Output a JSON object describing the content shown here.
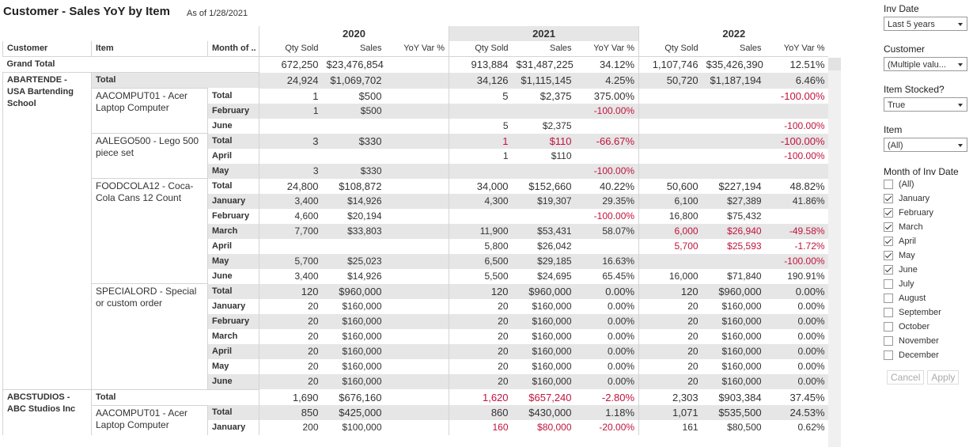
{
  "header": {
    "title": "Customer - Sales YoY by Item",
    "as_of": "As of 1/28/2021"
  },
  "table": {
    "dimensions": [
      "Customer",
      "Item",
      "Month of .."
    ],
    "years": [
      "2020",
      "2021",
      "2022"
    ],
    "measures": [
      "Qty Sold",
      "Sales",
      "YoY Var %"
    ],
    "total_label": "Total",
    "grand_total": {
      "label": "Grand Total",
      "cells": [
        "672,250",
        "$23,476,854",
        null,
        "913,884",
        "$31,487,225",
        "34.12%",
        "1,107,746",
        "$35,426,390",
        "12.51%"
      ]
    },
    "customers": [
      {
        "name": "ABARTENDE - USA Bartending School",
        "total": [
          "24,924",
          "$1,069,702",
          null,
          "34,126",
          "$1,115,145",
          "4.25%",
          "50,720",
          "$1,187,194",
          "6.46%"
        ],
        "items": [
          {
            "name": "AACOMPUT01 - Acer Laptop Computer",
            "total": [
              "1",
              "$500",
              null,
              "5",
              "$2,375",
              "375.00%",
              null,
              null,
              "-100.00%"
            ],
            "months": [
              {
                "month": "February",
                "cells": [
                  "1",
                  "$500",
                  null,
                  null,
                  null,
                  "-100.00%",
                  null,
                  null,
                  null
                ]
              },
              {
                "month": "June",
                "cells": [
                  null,
                  null,
                  null,
                  "5",
                  "$2,375",
                  null,
                  null,
                  null,
                  "-100.00%"
                ]
              }
            ]
          },
          {
            "name": "AALEGO500 - Lego 500 piece set",
            "total": [
              "3",
              "$330",
              null,
              "1",
              "$110",
              "-66.67%",
              null,
              null,
              "-100.00%"
            ],
            "months": [
              {
                "month": "April",
                "cells": [
                  null,
                  null,
                  null,
                  "1",
                  "$110",
                  null,
                  null,
                  null,
                  "-100.00%"
                ]
              },
              {
                "month": "May",
                "cells": [
                  "3",
                  "$330",
                  null,
                  null,
                  null,
                  "-100.00%",
                  null,
                  null,
                  null
                ]
              }
            ]
          },
          {
            "name": "FOODCOLA12 - Coca-Cola Cans 12 Count",
            "total": [
              "24,800",
              "$108,872",
              null,
              "34,000",
              "$152,660",
              "40.22%",
              "50,600",
              "$227,194",
              "48.82%"
            ],
            "months": [
              {
                "month": "January",
                "cells": [
                  "3,400",
                  "$14,926",
                  null,
                  "4,300",
                  "$19,307",
                  "29.35%",
                  "6,100",
                  "$27,389",
                  "41.86%"
                ]
              },
              {
                "month": "February",
                "cells": [
                  "4,600",
                  "$20,194",
                  null,
                  null,
                  null,
                  "-100.00%",
                  "16,800",
                  "$75,432",
                  null
                ]
              },
              {
                "month": "March",
                "cells": [
                  "7,700",
                  "$33,803",
                  null,
                  "11,900",
                  "$53,431",
                  "58.07%",
                  "6,000",
                  "$26,940",
                  "-49.58%"
                ]
              },
              {
                "month": "April",
                "cells": [
                  null,
                  null,
                  null,
                  "5,800",
                  "$26,042",
                  null,
                  "5,700",
                  "$25,593",
                  "-1.72%"
                ]
              },
              {
                "month": "May",
                "cells": [
                  "5,700",
                  "$25,023",
                  null,
                  "6,500",
                  "$29,185",
                  "16.63%",
                  null,
                  null,
                  "-100.00%"
                ]
              },
              {
                "month": "June",
                "cells": [
                  "3,400",
                  "$14,926",
                  null,
                  "5,500",
                  "$24,695",
                  "65.45%",
                  "16,000",
                  "$71,840",
                  "190.91%"
                ]
              }
            ]
          },
          {
            "name": "SPECIALORD - Special or custom order",
            "total": [
              "120",
              "$960,000",
              null,
              "120",
              "$960,000",
              "0.00%",
              "120",
              "$960,000",
              "0.00%"
            ],
            "months": [
              {
                "month": "January",
                "cells": [
                  "20",
                  "$160,000",
                  null,
                  "20",
                  "$160,000",
                  "0.00%",
                  "20",
                  "$160,000",
                  "0.00%"
                ]
              },
              {
                "month": "February",
                "cells": [
                  "20",
                  "$160,000",
                  null,
                  "20",
                  "$160,000",
                  "0.00%",
                  "20",
                  "$160,000",
                  "0.00%"
                ]
              },
              {
                "month": "March",
                "cells": [
                  "20",
                  "$160,000",
                  null,
                  "20",
                  "$160,000",
                  "0.00%",
                  "20",
                  "$160,000",
                  "0.00%"
                ]
              },
              {
                "month": "April",
                "cells": [
                  "20",
                  "$160,000",
                  null,
                  "20",
                  "$160,000",
                  "0.00%",
                  "20",
                  "$160,000",
                  "0.00%"
                ]
              },
              {
                "month": "May",
                "cells": [
                  "20",
                  "$160,000",
                  null,
                  "20",
                  "$160,000",
                  "0.00%",
                  "20",
                  "$160,000",
                  "0.00%"
                ]
              },
              {
                "month": "June",
                "cells": [
                  "20",
                  "$160,000",
                  null,
                  "20",
                  "$160,000",
                  "0.00%",
                  "20",
                  "$160,000",
                  "0.00%"
                ]
              }
            ]
          }
        ]
      },
      {
        "name": "ABCSTUDIOS - ABC Studios Inc",
        "total": [
          "1,690",
          "$676,160",
          null,
          "1,620",
          "$657,240",
          "-2.80%",
          "2,303",
          "$903,384",
          "37.45%"
        ],
        "items": [
          {
            "name": "AACOMPUT01 - Acer Laptop Computer",
            "total": [
              "850",
              "$425,000",
              null,
              "860",
              "$430,000",
              "1.18%",
              "1,071",
              "$535,500",
              "24.53%"
            ],
            "months": [
              {
                "month": "January",
                "cells": [
                  "200",
                  "$100,000",
                  null,
                  "160",
                  "$80,000",
                  "-20.00%",
                  "161",
                  "$80,500",
                  "0.62%"
                ]
              }
            ]
          }
        ]
      }
    ]
  },
  "filters": {
    "inv_date": {
      "label": "Inv Date",
      "value": "Last 5 years"
    },
    "customer": {
      "label": "Customer",
      "value": "(Multiple valu..."
    },
    "item_stocked": {
      "label": "Item Stocked?",
      "value": "True"
    },
    "item": {
      "label": "Item",
      "value": "(All)"
    },
    "month": {
      "label": "Month of Inv Date",
      "options": [
        {
          "label": "(All)",
          "checked": false
        },
        {
          "label": "January",
          "checked": true
        },
        {
          "label": "February",
          "checked": true
        },
        {
          "label": "March",
          "checked": true
        },
        {
          "label": "April",
          "checked": true
        },
        {
          "label": "May",
          "checked": true
        },
        {
          "label": "June",
          "checked": true
        },
        {
          "label": "July",
          "checked": false
        },
        {
          "label": "August",
          "checked": false
        },
        {
          "label": "September",
          "checked": false
        },
        {
          "label": "October",
          "checked": false
        },
        {
          "label": "November",
          "checked": false
        },
        {
          "label": "December",
          "checked": false
        }
      ]
    },
    "cancel": "Cancel",
    "apply": "Apply"
  }
}
